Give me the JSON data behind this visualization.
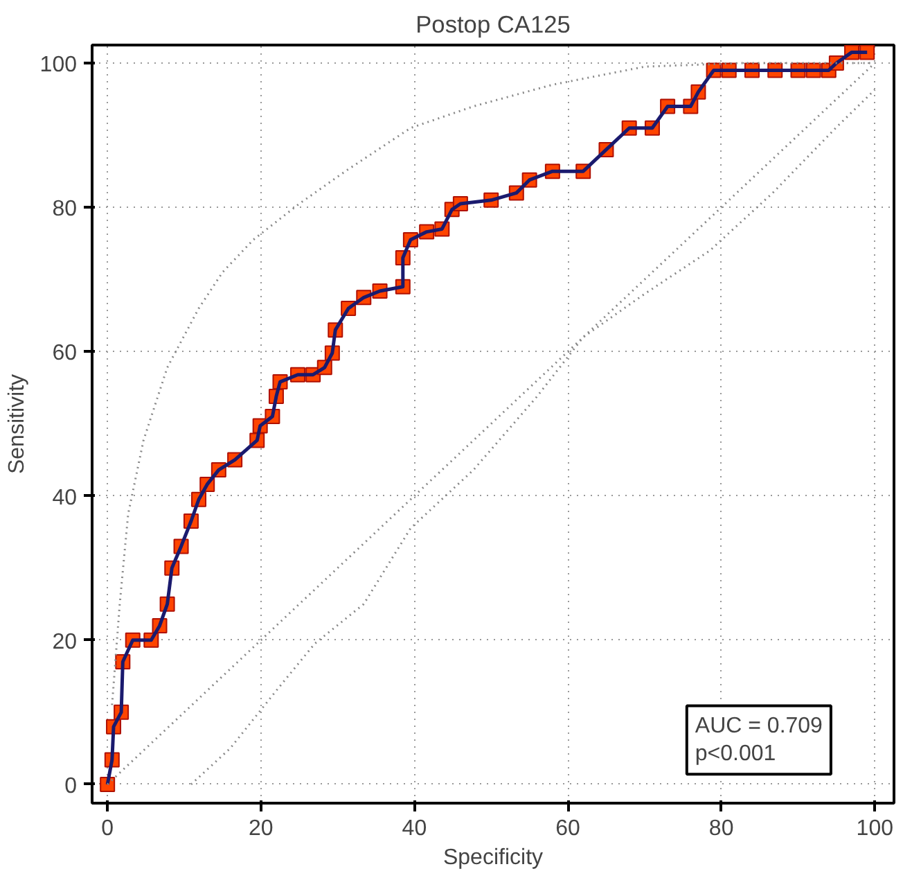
{
  "chart_data": {
    "type": "line",
    "title": "Postop CA125",
    "xlabel": "Specificity",
    "ylabel": "Sensitivity",
    "xlim": [
      -2,
      102.5
    ],
    "ylim": [
      -2.6,
      102.5
    ],
    "xticks": [
      0,
      20,
      40,
      60,
      80,
      100
    ],
    "yticks": [
      0,
      20,
      40,
      60,
      80,
      100
    ],
    "grid": true,
    "annotations": [
      "AUC = 0.709",
      "p<0.001"
    ],
    "series": [
      {
        "color": "#1a1a6e",
        "marker": "square",
        "line_style": "solid",
        "x": [
          0,
          0.6,
          0.8,
          1.8,
          2,
          3.3,
          5.7,
          6.8,
          7.8,
          8.4,
          9.6,
          10.9,
          11.9,
          13,
          14.5,
          16.6,
          19.5,
          19.9,
          21.5,
          22,
          22.5,
          24.8,
          26.8,
          28.3,
          29.3,
          29.7,
          31.4,
          33.4,
          35.5,
          38.5,
          38.5,
          39.5,
          41.6,
          43.6,
          44.9,
          46,
          50,
          53.3,
          55,
          58,
          62,
          65,
          68,
          71,
          73,
          76,
          77,
          79,
          81,
          84,
          87,
          90,
          92,
          94,
          95,
          97,
          99
        ],
        "values": [
          0,
          3.4,
          8,
          10,
          17,
          20,
          20,
          22,
          25,
          30,
          33,
          36.5,
          39.5,
          41.6,
          43.6,
          45,
          47.7,
          49.7,
          51,
          53.8,
          55.8,
          56.8,
          56.8,
          57.8,
          59.8,
          63,
          66,
          67.5,
          68.4,
          69,
          73,
          75.5,
          76.6,
          77,
          79.7,
          80.5,
          81,
          82,
          83.8,
          85,
          85,
          88,
          91,
          91,
          94,
          94,
          96,
          99,
          99,
          99,
          99,
          99,
          99,
          99,
          100,
          101.5,
          101.5
        ]
      },
      {
        "color": "#888888",
        "marker": "none",
        "line_style": "dotted",
        "x": [
          0.6,
          1.6,
          2.7,
          4.7,
          7.8,
          11.9,
          15,
          19,
          25,
          31,
          39.5,
          47.7,
          58,
          70,
          82.6,
          100
        ],
        "values": [
          11,
          25,
          37.5,
          47.7,
          57.8,
          66,
          71,
          75.5,
          80.5,
          85,
          91,
          94,
          97,
          99.5,
          100,
          100
        ]
      },
      {
        "color": "#888888",
        "marker": "none",
        "line_style": "dotted",
        "x": [
          10.9,
          16,
          22,
          27,
          33.4,
          39.5,
          47.7,
          56,
          62,
          70,
          78.5,
          86.7,
          94.9,
          100
        ],
        "values": [
          0,
          5,
          13,
          19.5,
          25,
          35.5,
          43.6,
          53.8,
          62,
          68,
          74,
          82,
          91,
          96.3
        ]
      },
      {
        "color": "#888888",
        "marker": "none",
        "line_style": "dotted",
        "x": [
          0,
          100
        ],
        "values": [
          0,
          100
        ]
      }
    ]
  }
}
